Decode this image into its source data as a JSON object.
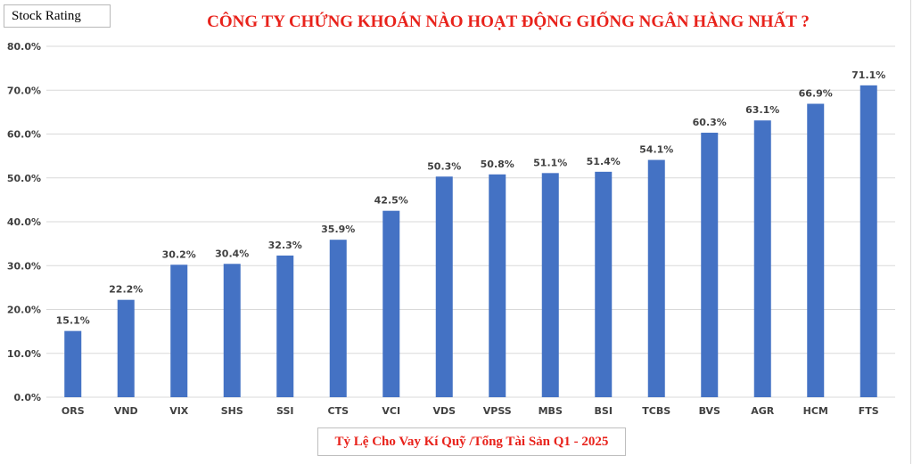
{
  "header": {
    "tag": "Stock Rating"
  },
  "chart_data": {
    "type": "bar",
    "title": "CÔNG TY CHỨNG KHOÁN NÀO HOẠT ĐỘNG GIỐNG NGÂN HÀNG NHẤT ?",
    "categories": [
      "ORS",
      "VND",
      "VIX",
      "SHS",
      "SSI",
      "CTS",
      "VCI",
      "VDS",
      "VPSS",
      "MBS",
      "BSI",
      "TCBS",
      "BVS",
      "AGR",
      "HCM",
      "FTS"
    ],
    "series": [
      {
        "name": "Tỷ Lệ Cho Vay Kí Quỹ /Tổng Tài Sản Q1 - 2025",
        "values": [
          15.1,
          22.2,
          30.2,
          30.4,
          32.3,
          35.9,
          42.5,
          50.3,
          50.8,
          51.1,
          51.4,
          54.1,
          60.3,
          63.1,
          66.9,
          71.1
        ]
      }
    ],
    "data_labels": [
      "15.1%",
      "22.2%",
      "30.2%",
      "30.4%",
      "32.3%",
      "35.9%",
      "42.5%",
      "50.3%",
      "50.8%",
      "51.1%",
      "51.4%",
      "54.1%",
      "60.3%",
      "63.1%",
      "66.9%",
      "71.1%"
    ],
    "y_ticks": [
      0,
      10,
      20,
      30,
      40,
      50,
      60,
      70,
      80
    ],
    "y_tick_labels": [
      "0.0%",
      "10.0%",
      "20.0%",
      "30.0%",
      "40.0%",
      "50.0%",
      "60.0%",
      "70.0%",
      "80.0%"
    ],
    "ylim": [
      0,
      80
    ],
    "xlabel": "",
    "ylabel": "",
    "grid": true,
    "legend_position": "bottom",
    "colors": {
      "bar": "#4472c4",
      "title": "#e8221b",
      "grid": "#d9d9d9",
      "axis_text": "#404040"
    }
  }
}
